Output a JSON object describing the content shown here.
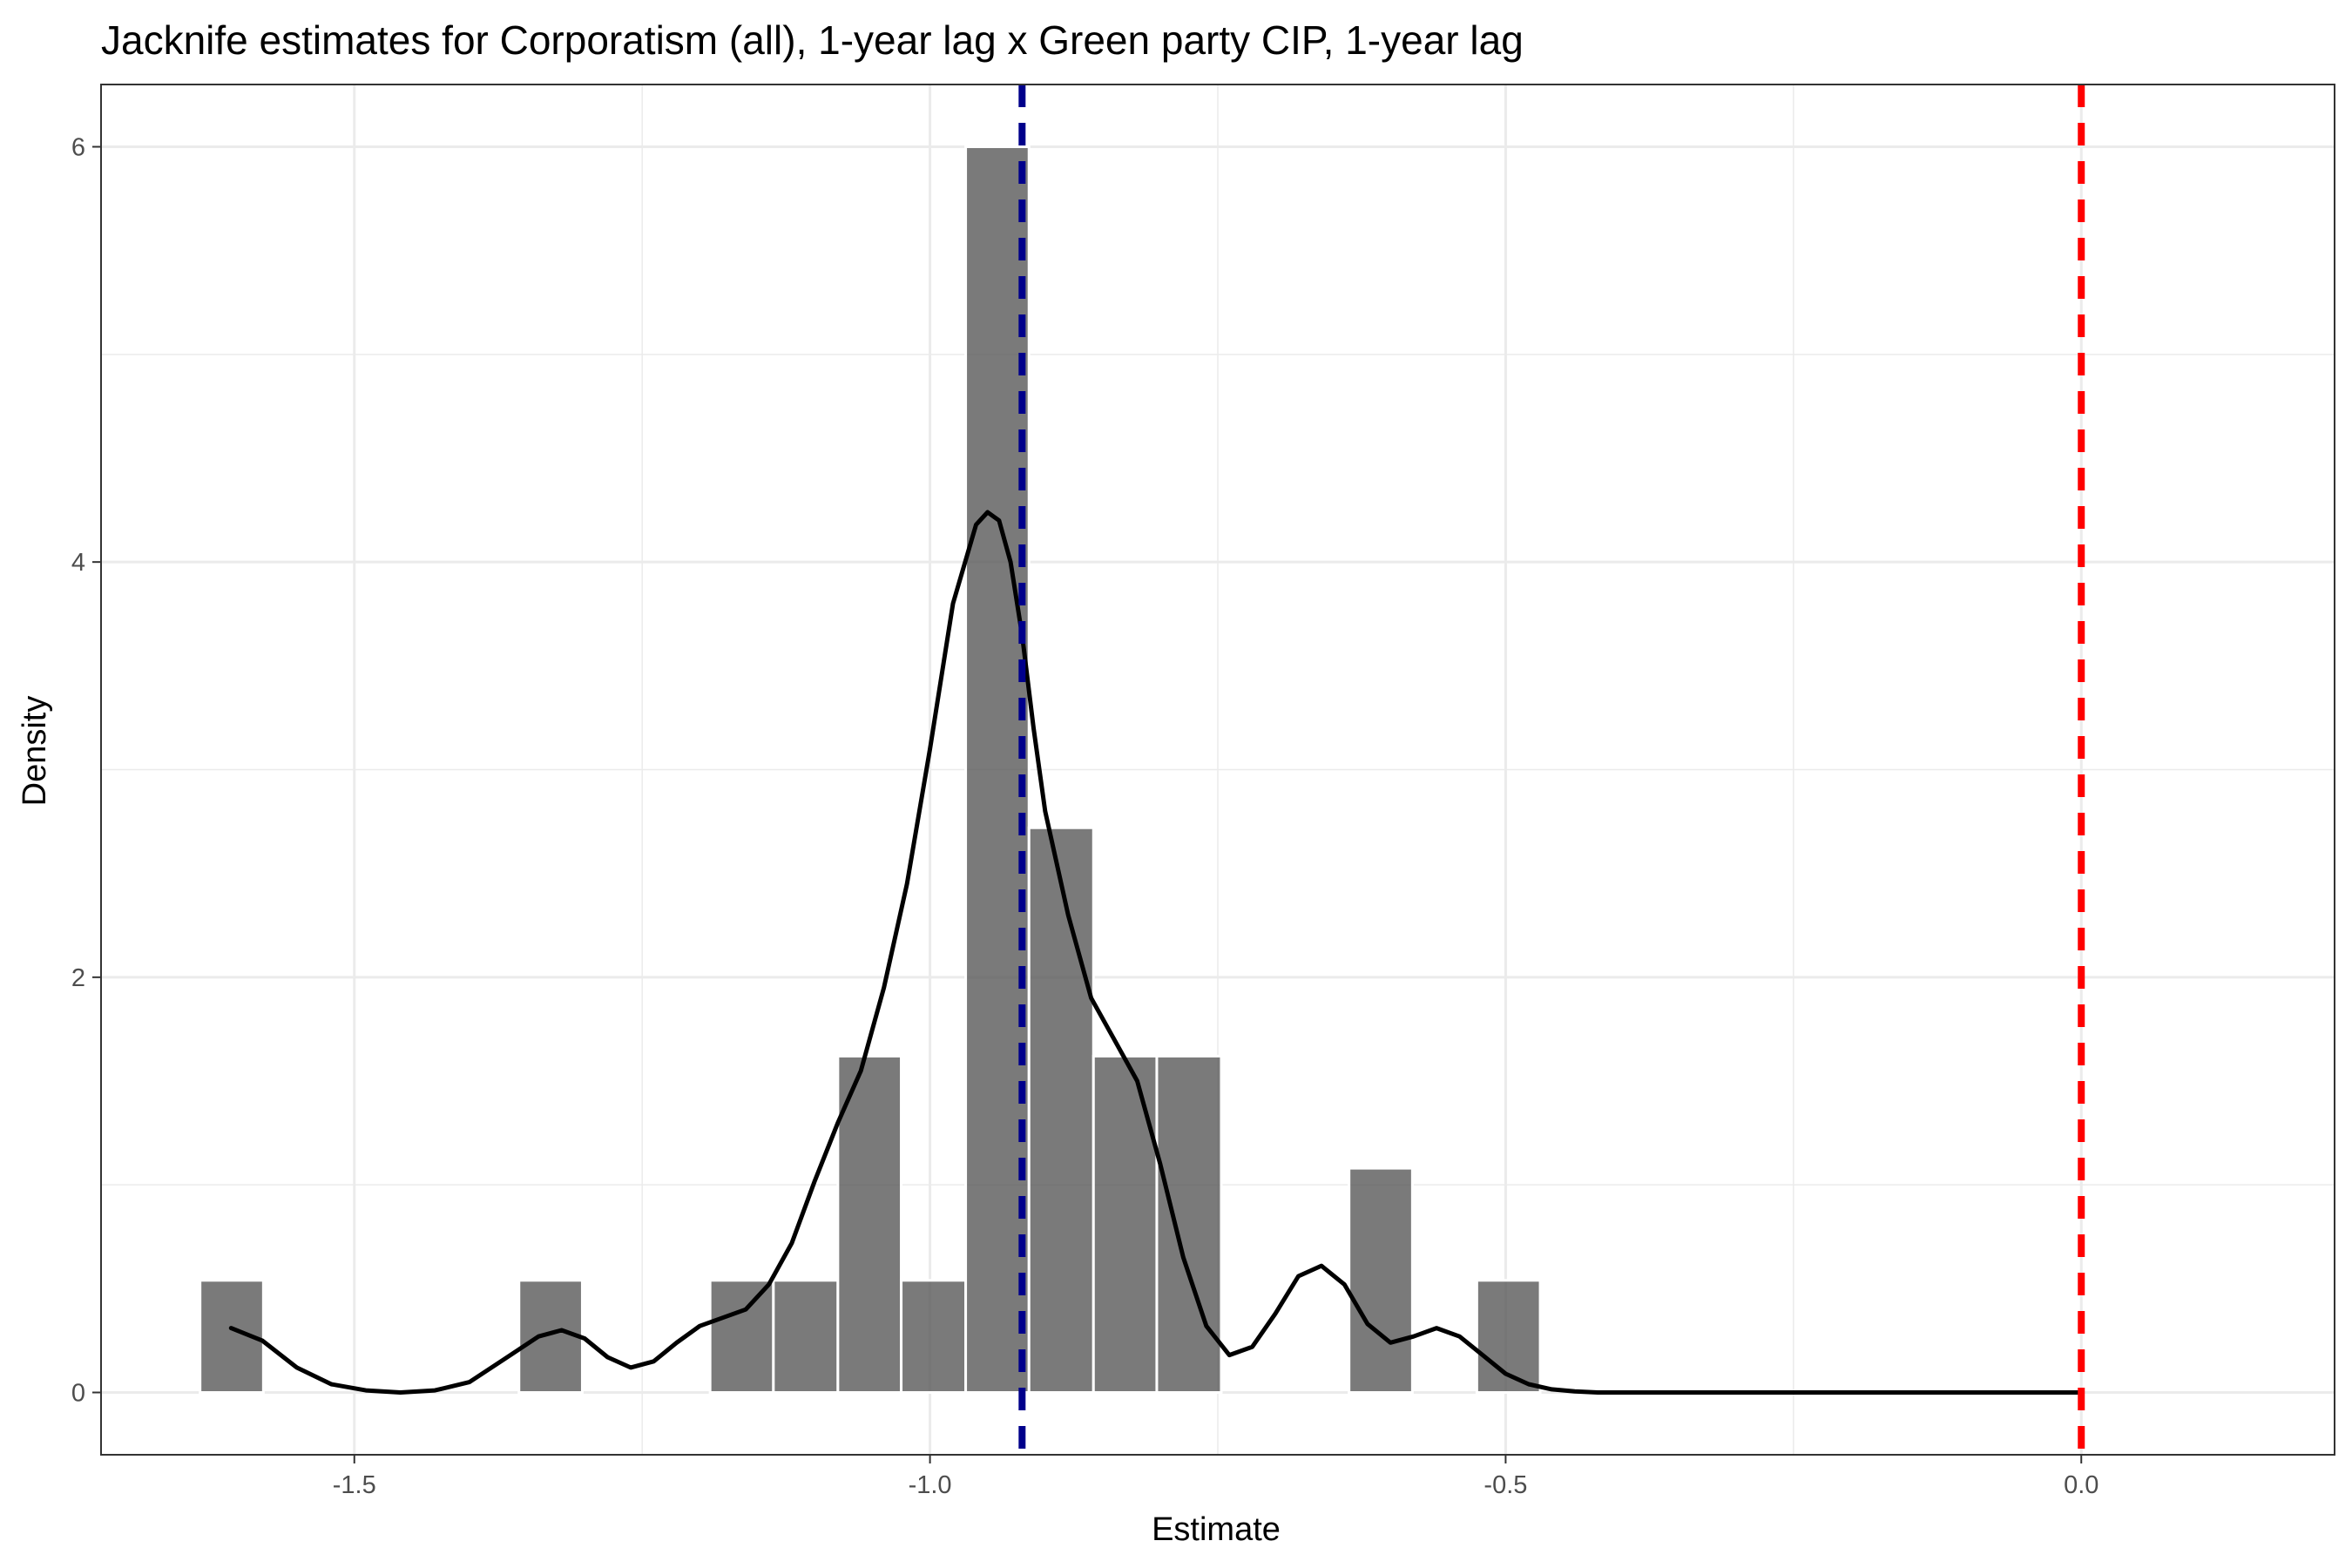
{
  "chart_data": {
    "type": "histogram",
    "title": "Jacknife estimates for Corporatism (all), 1-year lag x Green party CIP, 1-year lag",
    "xlabel": "Estimate",
    "ylabel": "Density",
    "xlim": [
      -1.72,
      0.22
    ],
    "ylim": [
      -0.3,
      6.3
    ],
    "x_ticks": [
      -1.5,
      -1.0,
      -0.5,
      0.0
    ],
    "x_tick_labels": [
      "-1.5",
      "-1.0",
      "-0.5",
      "0.0"
    ],
    "y_ticks": [
      0,
      2,
      4,
      6
    ],
    "y_tick_labels": [
      "0",
      "2",
      "4",
      "6"
    ],
    "grid": true,
    "bins": [
      {
        "x0": -1.634,
        "x1": -1.579,
        "density": 0.54
      },
      {
        "x0": -1.357,
        "x1": -1.302,
        "density": 0.54
      },
      {
        "x0": -1.191,
        "x1": -1.136,
        "density": 0.54
      },
      {
        "x0": -1.136,
        "x1": -1.08,
        "density": 0.54
      },
      {
        "x0": -1.08,
        "x1": -1.025,
        "density": 1.62
      },
      {
        "x0": -1.025,
        "x1": -0.969,
        "density": 0.54
      },
      {
        "x0": -0.969,
        "x1": -0.914,
        "density": 6.0
      },
      {
        "x0": -0.914,
        "x1": -0.858,
        "density": 2.72
      },
      {
        "x0": -0.858,
        "x1": -0.803,
        "density": 1.62
      },
      {
        "x0": -0.803,
        "x1": -0.747,
        "density": 1.62
      },
      {
        "x0": -0.636,
        "x1": -0.581,
        "density": 1.08
      },
      {
        "x0": -0.525,
        "x1": -0.47,
        "density": 0.54
      }
    ],
    "density_curve": {
      "x": [
        -1.607,
        -1.58,
        -1.55,
        -1.52,
        -1.49,
        -1.46,
        -1.43,
        -1.4,
        -1.37,
        -1.34,
        -1.32,
        -1.3,
        -1.28,
        -1.26,
        -1.24,
        -1.22,
        -1.2,
        -1.18,
        -1.16,
        -1.14,
        -1.12,
        -1.1,
        -1.08,
        -1.06,
        -1.04,
        -1.02,
        -1.0,
        -0.98,
        -0.96,
        -0.95,
        -0.94,
        -0.93,
        -0.92,
        -0.91,
        -0.9,
        -0.89,
        -0.88,
        -0.87,
        -0.86,
        -0.84,
        -0.82,
        -0.8,
        -0.78,
        -0.76,
        -0.74,
        -0.72,
        -0.7,
        -0.68,
        -0.66,
        -0.64,
        -0.62,
        -0.6,
        -0.58,
        -0.56,
        -0.54,
        -0.52,
        -0.5,
        -0.48,
        -0.46,
        -0.44,
        -0.42,
        -0.4,
        -0.37,
        -0.34,
        -0.3,
        -0.25,
        -0.2,
        -0.15,
        -0.1,
        -0.05,
        0.0
      ],
      "y": [
        0.31,
        0.25,
        0.12,
        0.04,
        0.01,
        0.0,
        0.01,
        0.05,
        0.16,
        0.27,
        0.3,
        0.26,
        0.17,
        0.12,
        0.15,
        0.24,
        0.32,
        0.36,
        0.4,
        0.52,
        0.72,
        1.02,
        1.3,
        1.55,
        1.95,
        2.45,
        3.1,
        3.8,
        4.18,
        4.24,
        4.2,
        4.0,
        3.65,
        3.2,
        2.8,
        2.55,
        2.3,
        2.1,
        1.9,
        1.7,
        1.5,
        1.1,
        0.65,
        0.32,
        0.18,
        0.22,
        0.38,
        0.56,
        0.61,
        0.52,
        0.33,
        0.24,
        0.27,
        0.31,
        0.27,
        0.18,
        0.09,
        0.04,
        0.015,
        0.005,
        0.0,
        0.0,
        0.0,
        0.0,
        0.0,
        0.0,
        0.0,
        0.0,
        0.0,
        0.0,
        0.0
      ]
    },
    "reference_lines": [
      {
        "x": -0.92,
        "color": "#00008B",
        "style": "dashed"
      },
      {
        "x": 0.0,
        "color": "#FF0000",
        "style": "dashed"
      }
    ],
    "colors": {
      "bar_fill": "#595959",
      "bar_stroke": "#ffffff",
      "curve": "#000000",
      "grid": "#ebebeb",
      "panel_border": "#333333"
    }
  }
}
